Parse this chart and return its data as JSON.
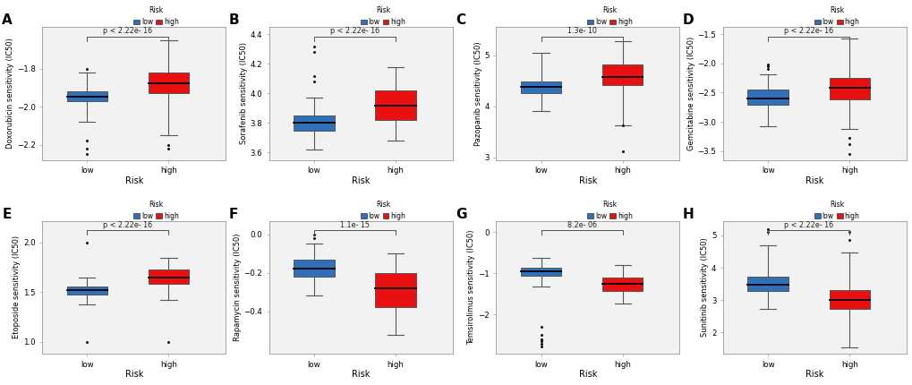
{
  "panels": [
    {
      "label": "A",
      "ylabel": "Doxorubicin sensitivity (IC50)",
      "pvalue": "p < 2.22e- 16",
      "low": {
        "med": -1.945,
        "q1": -1.97,
        "q3": -1.92,
        "wlo": -2.08,
        "whi": -1.82,
        "out": [
          -2.25,
          -2.22,
          -2.18,
          -1.8
        ]
      },
      "high": {
        "med": -1.875,
        "q1": -1.93,
        "q3": -1.82,
        "wlo": -2.15,
        "whi": -1.65,
        "out": [
          -2.22,
          -2.2
        ]
      },
      "ylim": [
        -2.28,
        -1.58
      ],
      "yticks": [
        -2.2,
        -2.0,
        -1.8
      ]
    },
    {
      "label": "B",
      "ylabel": "Sorafenib sensitivity (IC50)",
      "pvalue": "p < 2.22e- 16",
      "low": {
        "med": 3.8,
        "q1": 3.75,
        "q3": 3.85,
        "wlo": 3.62,
        "whi": 3.97,
        "out": [
          4.08,
          4.12,
          4.28,
          4.32
        ]
      },
      "high": {
        "med": 3.92,
        "q1": 3.82,
        "q3": 4.02,
        "wlo": 3.68,
        "whi": 4.18,
        "out": []
      },
      "ylim": [
        3.55,
        4.45
      ],
      "yticks": [
        3.6,
        3.8,
        4.0,
        4.2,
        4.4
      ]
    },
    {
      "label": "C",
      "ylabel": "Pazopanib sensitivity (IC50)",
      "pvalue": "1.3e- 10",
      "low": {
        "med": 4.38,
        "q1": 4.25,
        "q3": 4.48,
        "wlo": 3.9,
        "whi": 5.05,
        "out": []
      },
      "high": {
        "med": 4.58,
        "q1": 4.42,
        "q3": 4.82,
        "wlo": 3.62,
        "whi": 5.28,
        "out": [
          3.12,
          3.62
        ]
      },
      "ylim": [
        2.95,
        5.55
      ],
      "yticks": [
        3.0,
        4.0,
        5.0
      ]
    },
    {
      "label": "D",
      "ylabel": "Gemcitabine sensitivity (IC50)",
      "pvalue": "p < 2.22e- 16",
      "low": {
        "med": -2.6,
        "q1": -2.7,
        "q3": -2.45,
        "wlo": -3.08,
        "whi": -2.18,
        "out": [
          -2.02,
          -2.05,
          -2.1
        ]
      },
      "high": {
        "med": -2.42,
        "q1": -2.62,
        "q3": -2.25,
        "wlo": -3.12,
        "whi": -1.58,
        "out": [
          -3.28,
          -3.38,
          -3.55
        ]
      },
      "ylim": [
        -3.65,
        -1.38
      ],
      "yticks": [
        -1.5,
        -2.0,
        -2.5,
        -3.0,
        -3.5
      ]
    },
    {
      "label": "E",
      "ylabel": "Etoposide sensitivity (IC50)",
      "pvalue": "p < 2.22e- 16",
      "low": {
        "med": 1.52,
        "q1": 1.48,
        "q3": 1.56,
        "wlo": 1.38,
        "whi": 1.65,
        "out": [
          1.0,
          2.0
        ]
      },
      "high": {
        "med": 1.65,
        "q1": 1.58,
        "q3": 1.73,
        "wlo": 1.42,
        "whi": 1.85,
        "out": [
          1.0
        ]
      },
      "ylim": [
        0.88,
        2.22
      ],
      "yticks": [
        1.0,
        1.5,
        2.0
      ]
    },
    {
      "label": "F",
      "ylabel": "Rapamycin sensitivity (IC50)",
      "pvalue": "1.1e- 15",
      "low": {
        "med": -0.18,
        "q1": -0.22,
        "q3": -0.13,
        "wlo": -0.32,
        "whi": -0.05,
        "out": [
          -0.02,
          0.0
        ]
      },
      "high": {
        "med": -0.28,
        "q1": -0.38,
        "q3": -0.2,
        "wlo": -0.52,
        "whi": -0.1,
        "out": []
      },
      "ylim": [
        -0.62,
        0.07
      ],
      "yticks": [
        0.0,
        -0.2,
        -0.4
      ]
    },
    {
      "label": "G",
      "ylabel": "Temsirolimus sensitivity (IC50)",
      "pvalue": "8.2e- 06",
      "low": {
        "med": -0.95,
        "q1": -1.05,
        "q3": -0.85,
        "wlo": -1.32,
        "whi": -0.62,
        "out": [
          -2.3,
          -2.5,
          -2.6,
          -2.65,
          -2.72,
          -2.78
        ]
      },
      "high": {
        "med": -1.25,
        "q1": -1.42,
        "q3": -1.1,
        "wlo": -1.72,
        "whi": -0.8,
        "out": []
      },
      "ylim": [
        -2.95,
        0.28
      ],
      "yticks": [
        0.0,
        -1.0,
        -2.0
      ]
    },
    {
      "label": "H",
      "ylabel": "Sunitinib sensitivity (IC50)",
      "pvalue": "p < 2.22e- 16",
      "low": {
        "med": 3.48,
        "q1": 3.28,
        "q3": 3.72,
        "wlo": 2.72,
        "whi": 4.68,
        "out": [
          5.12,
          5.18
        ]
      },
      "high": {
        "med": 3.02,
        "q1": 2.72,
        "q3": 3.3,
        "wlo": 1.55,
        "whi": 4.48,
        "out": [
          4.85,
          5.12
        ]
      },
      "ylim": [
        1.35,
        5.45
      ],
      "yticks": [
        2.0,
        3.0,
        4.0,
        5.0
      ]
    }
  ],
  "blue_color": "#3070B8",
  "red_color": "#E81010",
  "panel_bg": "#F2F2F2",
  "fig_bg": "#FFFFFF"
}
